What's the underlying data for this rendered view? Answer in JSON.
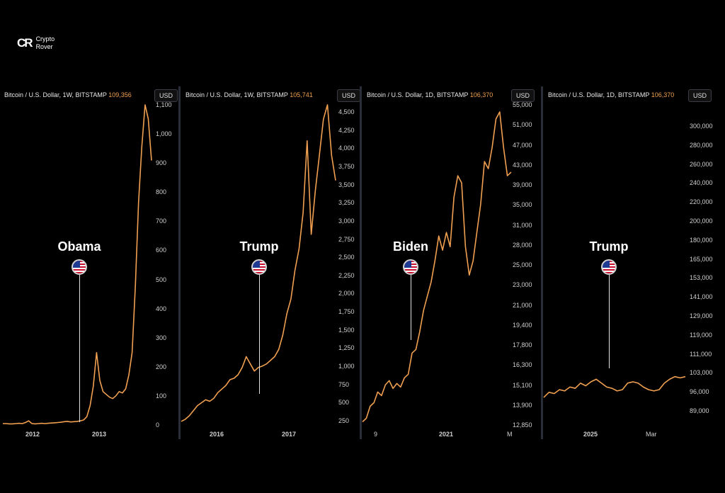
{
  "colors": {
    "line": "#f0a050",
    "background": "#000000",
    "divider": "#2a2e39"
  },
  "logo": {
    "mark": "CR",
    "line1": "Crypto",
    "line2": "Rover"
  },
  "panels": [
    {
      "header": "Bitcoin / U.S. Dollar, 1W, BITSTAMP",
      "price": "109,356",
      "currency": "USD",
      "annotation": "Obama",
      "yticks": [
        "1,100",
        "1,000",
        "900",
        "800",
        "700",
        "600",
        "500",
        "400",
        "300",
        "200",
        "100",
        "0"
      ],
      "xticks": [
        "2012",
        "2013"
      ]
    },
    {
      "header": "Bitcoin / U.S. Dollar, 1W, BITSTAMP",
      "price": "105,741",
      "currency": "USD",
      "annotation": "Trump",
      "yticks": [
        "4,500",
        "4,250",
        "4,000",
        "3,750",
        "3,500",
        "3,250",
        "3,000",
        "2,750",
        "2,500",
        "2,250",
        "2,000",
        "1,750",
        "1,500",
        "1,250",
        "1,000",
        "750",
        "500",
        "250"
      ],
      "xticks": [
        "2016",
        "2017"
      ]
    },
    {
      "header": "Bitcoin / U.S. Dollar, 1D, BITSTAMP",
      "price": "106,370",
      "currency": "USD",
      "annotation": "Biden",
      "yticks": [
        "55,000",
        "51,000",
        "47,000",
        "43,000",
        "39,000",
        "35,000",
        "31,000",
        "28,000",
        "25,000",
        "23,000",
        "21,000",
        "19,400",
        "17,800",
        "16,300",
        "15,100",
        "13,900",
        "12,850"
      ],
      "xticks": [
        "9",
        "2021",
        "M"
      ]
    },
    {
      "header": "Bitcoin / U.S. Dollar, 1D, BITSTAMP",
      "price": "106,370",
      "currency": "USD",
      "annotation": "Trump",
      "yticks": [
        "300,000",
        "280,000",
        "260,000",
        "240,000",
        "220,000",
        "200,000",
        "180,000",
        "165,000",
        "153,000",
        "141,000",
        "129,000",
        "119,000",
        "111,000",
        "103,000",
        "96,000",
        "89,000"
      ],
      "xticks": [
        "2025",
        "Mar"
      ]
    }
  ],
  "chart_data": [
    {
      "type": "line",
      "series": [
        {
          "values": [
            5,
            5,
            4,
            4,
            5,
            6,
            5,
            9,
            15,
            5,
            4,
            5,
            6,
            5,
            6,
            7,
            8,
            9,
            10,
            12,
            13,
            11,
            12,
            13,
            15,
            18,
            30,
            70,
            140,
            260,
            160,
            120,
            110,
            100,
            95,
            105,
            120,
            115,
            130,
            180,
            260,
            500,
            800,
            1000,
            1150,
            1100,
            950
          ]
        }
      ],
      "ylim": [
        0,
        1150
      ]
    },
    {
      "type": "line",
      "series": [
        {
          "values": [
            300,
            330,
            380,
            450,
            520,
            560,
            600,
            580,
            620,
            700,
            750,
            800,
            880,
            900,
            950,
            1050,
            1200,
            1100,
            1000,
            1050,
            1070,
            1100,
            1150,
            1200,
            1300,
            1500,
            1800,
            2000,
            2400,
            2700,
            3200,
            4200,
            2900,
            3500,
            4000,
            4500,
            4700,
            4000,
            3650
          ]
        }
      ],
      "ylim": [
        250,
        4700
      ]
    },
    {
      "type": "line",
      "series": [
        {
          "values": [
            13300,
            13800,
            15500,
            16000,
            17500,
            17000,
            18500,
            19100,
            18000,
            18700,
            18200,
            19500,
            20000,
            23000,
            23500,
            26000,
            29000,
            31000,
            33000,
            36000,
            39500,
            37500,
            40000,
            38000,
            45000,
            48000,
            47000,
            38000,
            34000,
            36000,
            40000,
            44000,
            50000,
            49000,
            52000,
            56000,
            57000,
            52000,
            48000,
            48500
          ]
        }
      ],
      "ylim": [
        12850,
        58000
      ]
    },
    {
      "type": "line",
      "series": [
        {
          "values": [
            92000,
            96000,
            95000,
            98000,
            97000,
            100000,
            99000,
            103000,
            101000,
            104000,
            106000,
            103000,
            100000,
            99000,
            97000,
            98000,
            103000,
            104000,
            103000,
            100000,
            98000,
            97000,
            98000,
            103000,
            106000,
            108000,
            107000,
            108000
          ]
        }
      ],
      "ylim": [
        85000,
        310000
      ]
    }
  ]
}
